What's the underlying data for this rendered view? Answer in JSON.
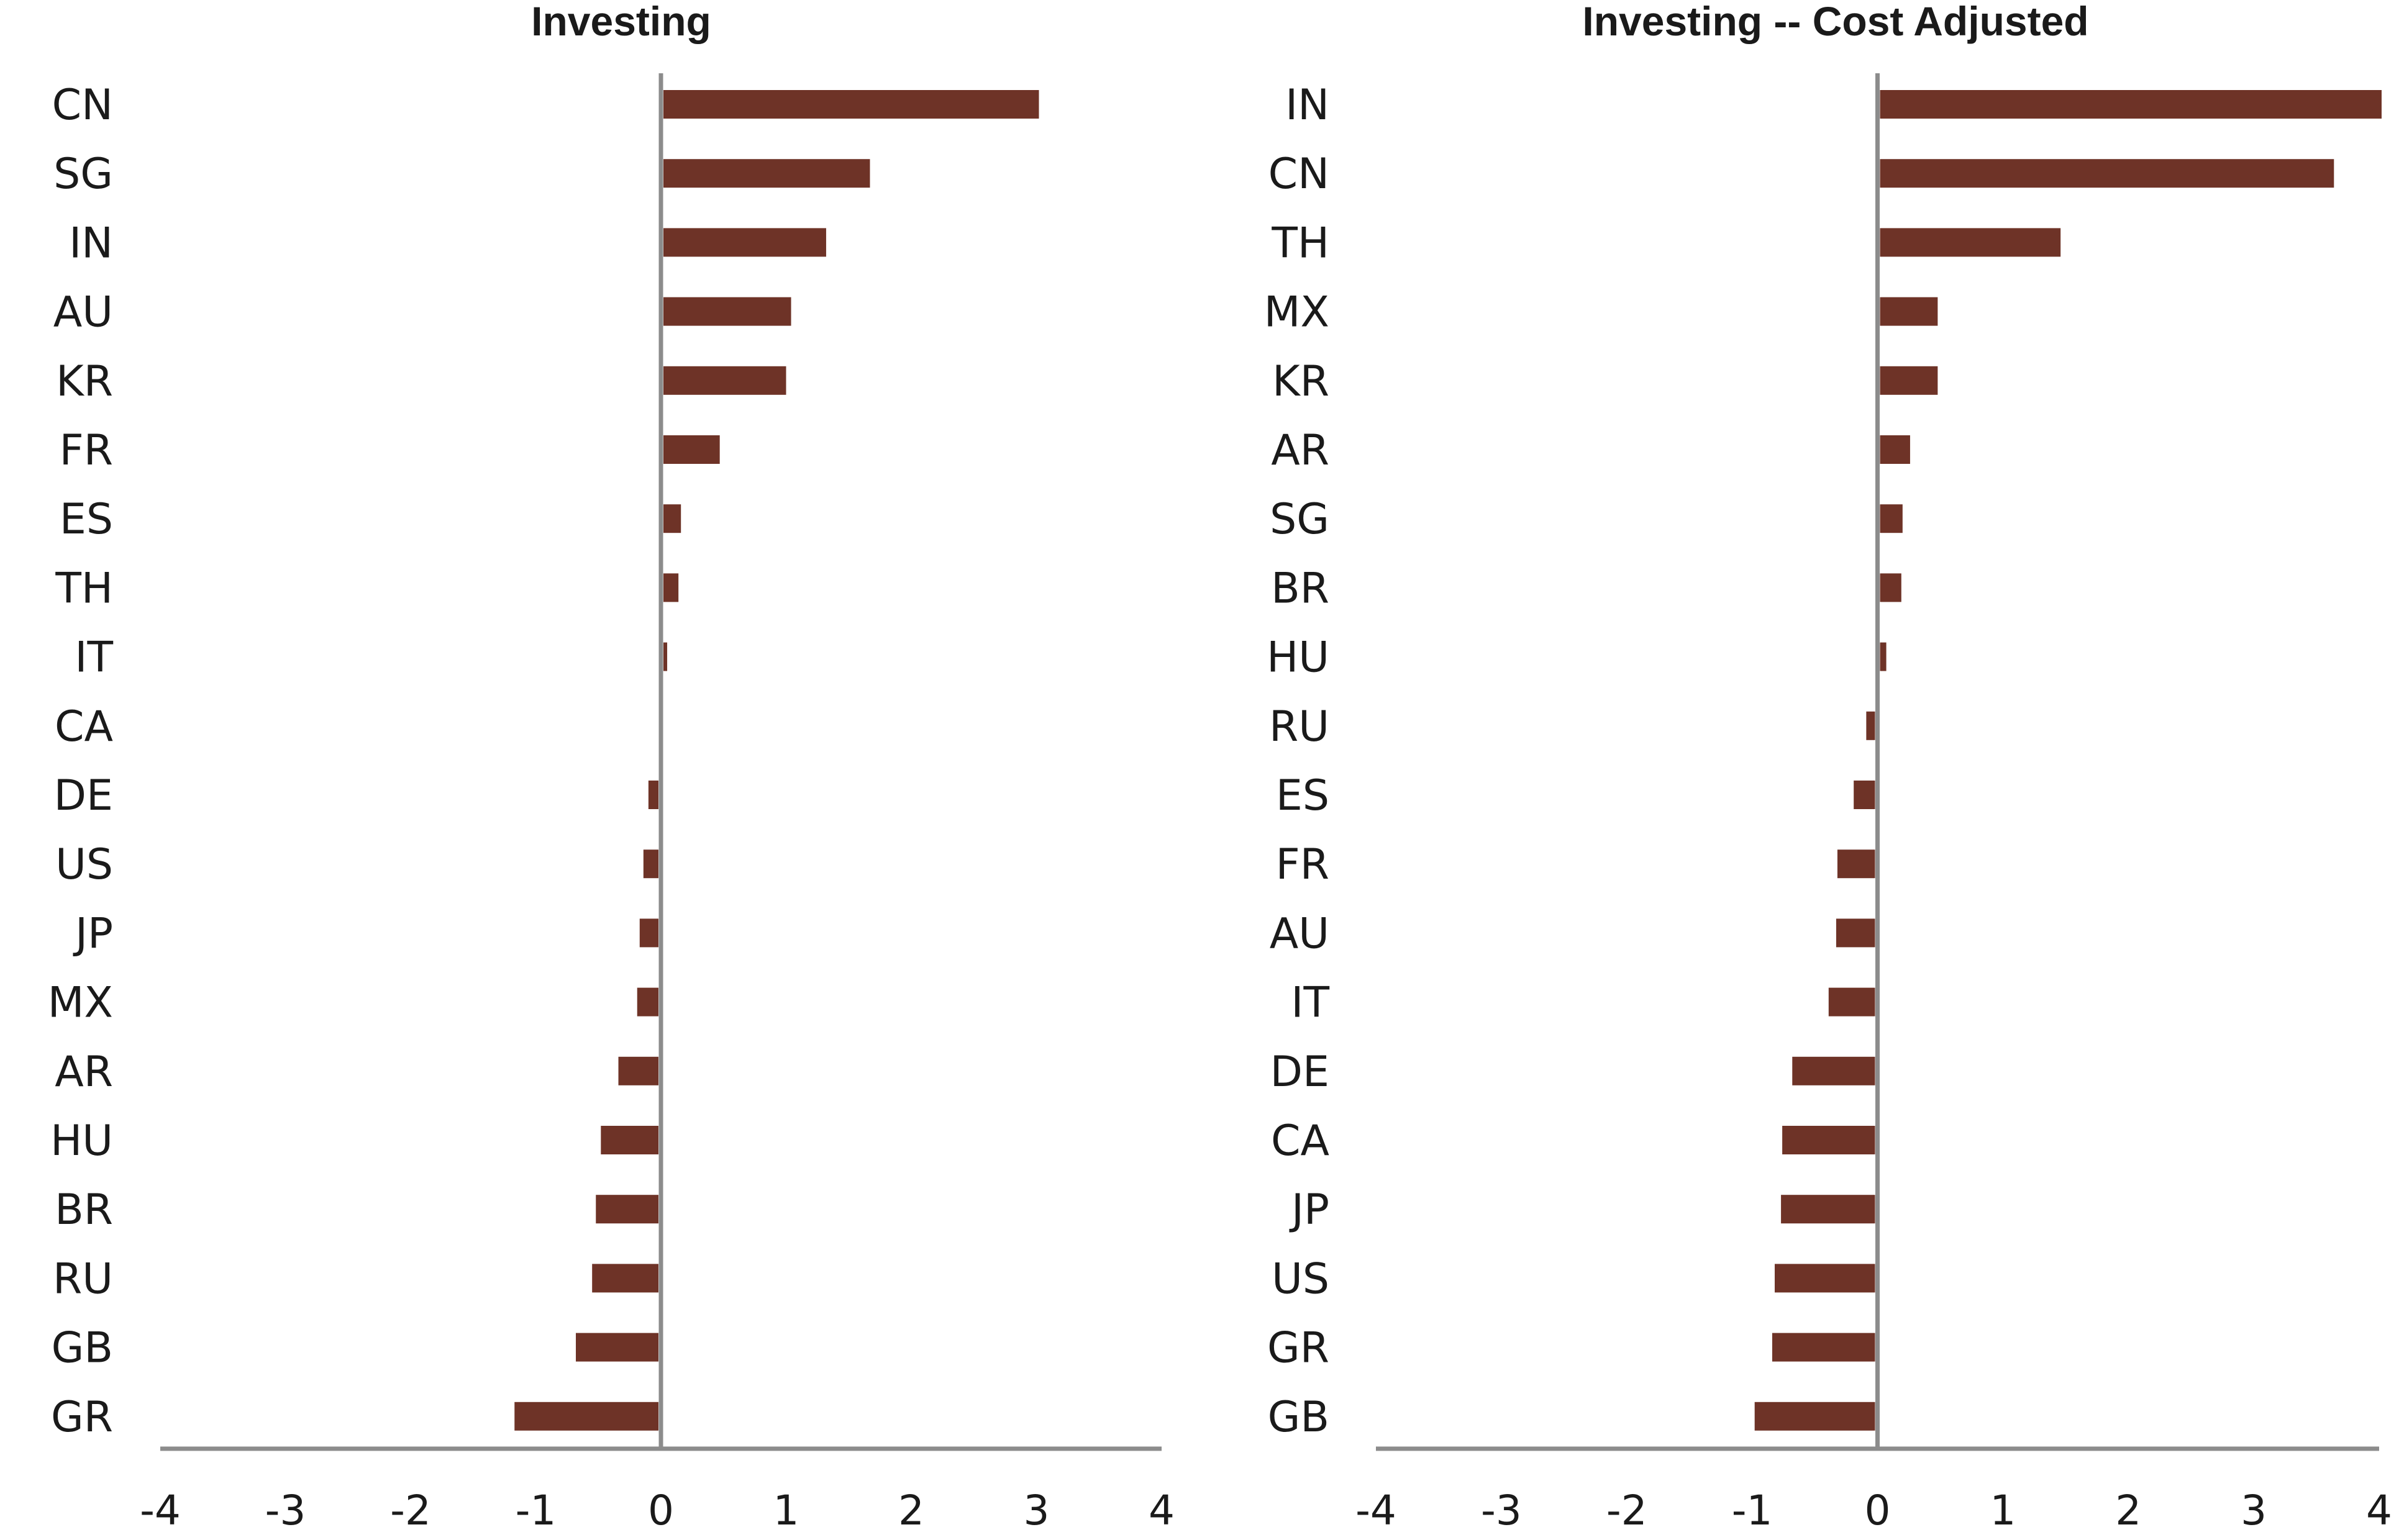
{
  "colors": {
    "bar": "#6e3327",
    "axis": "#8c8c8c",
    "text": "#1a1a1a"
  },
  "chart_data": [
    {
      "type": "bar",
      "orientation": "horizontal",
      "title": "Investing",
      "categories": [
        "CN",
        "SG",
        "IN",
        "AU",
        "KR",
        "FR",
        "ES",
        "TH",
        "IT",
        "CA",
        "DE",
        "US",
        "JP",
        "MX",
        "AR",
        "HU",
        "BR",
        "RU",
        "GB",
        "GR"
      ],
      "values": [
        3.0,
        1.65,
        1.3,
        1.02,
        0.98,
        0.45,
        0.14,
        0.12,
        0.03,
        0.0,
        -0.08,
        -0.12,
        -0.15,
        -0.17,
        -0.32,
        -0.46,
        -0.5,
        -0.53,
        -0.66,
        -1.15
      ],
      "xlim": [
        -4,
        4
      ],
      "xticks": [
        "-4",
        "-3",
        "-2",
        "-1",
        "0",
        "1",
        "2",
        "3",
        "4"
      ],
      "grid": false,
      "xlabel": "",
      "ylabel": ""
    },
    {
      "type": "bar",
      "orientation": "horizontal",
      "title": "Investing -- Cost Adjusted",
      "categories": [
        "IN",
        "CN",
        "TH",
        "MX",
        "KR",
        "AR",
        "SG",
        "BR",
        "HU",
        "RU",
        "ES",
        "FR",
        "AU",
        "IT",
        "DE",
        "CA",
        "JP",
        "US",
        "GR",
        "GB"
      ],
      "values": [
        4.0,
        3.62,
        1.44,
        0.46,
        0.46,
        0.24,
        0.18,
        0.17,
        0.05,
        -0.07,
        -0.17,
        -0.3,
        -0.31,
        -0.37,
        -0.66,
        -0.74,
        -0.75,
        -0.8,
        -0.82,
        -0.96
      ],
      "xlim": [
        -4,
        4
      ],
      "xticks": [
        "-4",
        "-3",
        "-2",
        "-1",
        "0",
        "1",
        "2",
        "3",
        "4"
      ],
      "grid": false,
      "xlabel": "",
      "ylabel": ""
    }
  ]
}
